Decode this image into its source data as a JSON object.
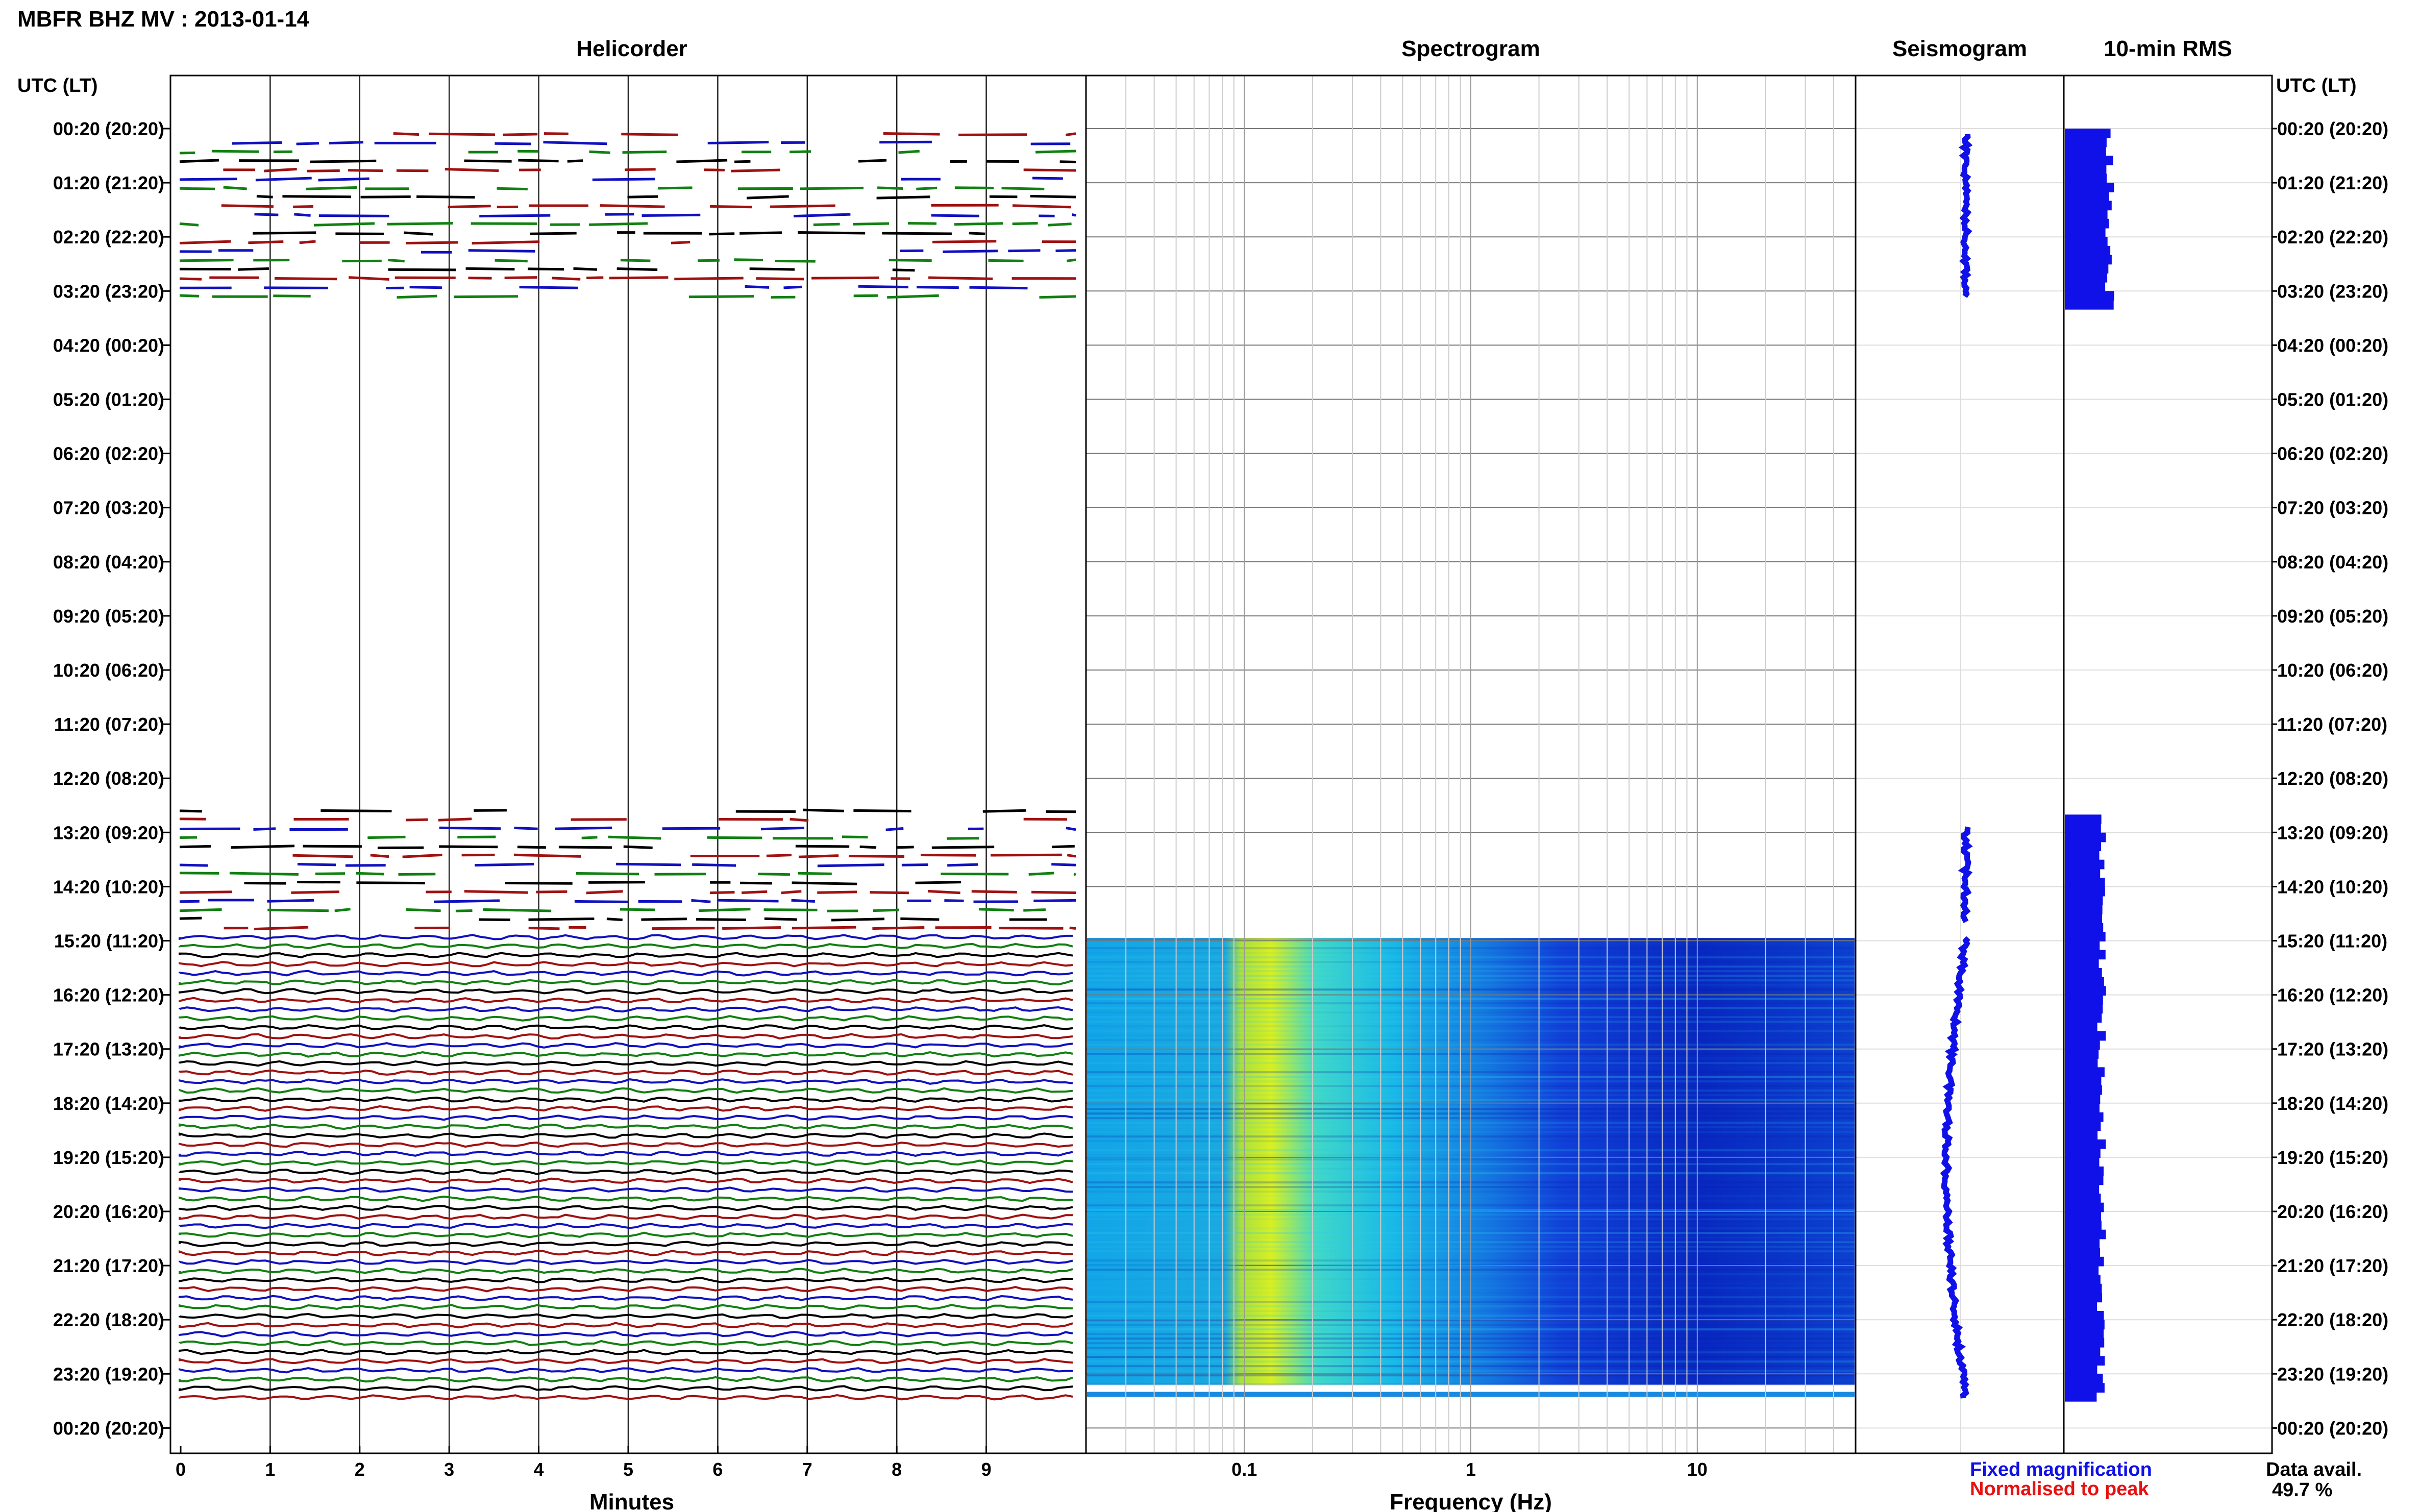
{
  "header": {
    "title": "MBFR BHZ MV : 2013-01-14"
  },
  "panels": {
    "helicorder": "Helicorder",
    "spectrogram": "Spectrogram",
    "seismogram": "Seismogram",
    "rms": "10-min RMS"
  },
  "axes": {
    "left_time_label": "UTC (LT)",
    "right_time_label": "UTC (LT)",
    "helicorder_xlabel": "Minutes",
    "spectrogram_xlabel": "Frequency (Hz)"
  },
  "legend": {
    "fixed": "Fixed magnification",
    "normalised": "Normalised to peak",
    "fixed_color": "#1010e8",
    "normalised_color": "#e81010"
  },
  "data_avail": {
    "label": "Data avail.",
    "value": "49.7 %"
  },
  "chart_data": {
    "type": "helicorder",
    "time_labels": [
      "00:20 (20:20)",
      "01:20 (21:20)",
      "02:20 (22:20)",
      "03:20 (23:20)",
      "04:20 (00:20)",
      "05:20 (01:20)",
      "06:20 (02:20)",
      "07:20 (03:20)",
      "08:20 (04:20)",
      "09:20 (05:20)",
      "10:20 (06:20)",
      "11:20 (07:20)",
      "12:20 (08:20)",
      "13:20 (09:20)",
      "14:20 (10:20)",
      "15:20 (11:20)",
      "16:20 (12:20)",
      "17:20 (13:20)",
      "18:20 (14:20)",
      "19:20 (15:20)",
      "20:20 (16:20)",
      "21:20 (17:20)",
      "22:20 (18:20)",
      "23:20 (19:20)",
      "00:20 (20:20)"
    ],
    "helicorder": {
      "x_ticks": [
        "0",
        "1",
        "2",
        "3",
        "4",
        "5",
        "6",
        "7",
        "8",
        "9"
      ],
      "xlim": [
        0,
        10
      ],
      "trace_colors": [
        "#a01010",
        "#1010c0",
        "#108010",
        "#000000"
      ],
      "segments_hours": [
        [
          0.1,
          3.1
        ],
        [
          12.6,
          23.5
        ]
      ],
      "gappy_hours": [
        [
          0.1,
          3.1
        ],
        [
          12.6,
          14.9
        ]
      ]
    },
    "spectrogram": {
      "x_ticks": [
        "0.1",
        "1",
        "10"
      ],
      "xscale": "log",
      "xlim": [
        0.02,
        50
      ],
      "data_hours": [
        14.95,
        23.2
      ],
      "colormap": "jet"
    },
    "seismogram": {
      "color": "#1010e8",
      "segments_hours": [
        [
          0.1,
          3.1
        ],
        [
          12.9,
          14.7
        ],
        [
          14.95,
          23.5
        ]
      ]
    },
    "rms": {
      "color": "#1010e8",
      "bins_10min": [
        {
          "start": 0.0,
          "end": 3.17,
          "level": 0.55
        },
        {
          "start": 12.67,
          "end": 23.5,
          "level": 0.45
        }
      ]
    }
  }
}
